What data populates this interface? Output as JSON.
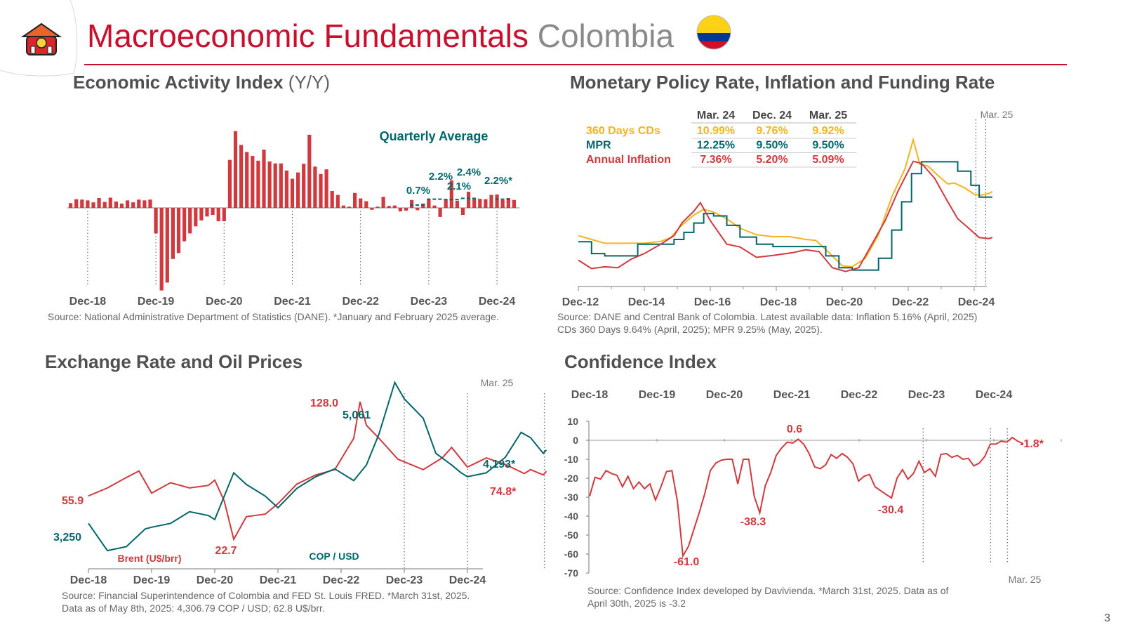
{
  "header": {
    "title_main": "Macroeconomic Fundamentals",
    "title_country": "Colombia",
    "page_number": "3"
  },
  "colors": {
    "red": "#c8102e",
    "chart_red": "#d0393e",
    "teal": "#00666a",
    "gold": "#f0b51e",
    "flag_yellow": "#fcd116",
    "flag_blue": "#003893",
    "flag_red": "#ce1126"
  },
  "panels": {
    "activity": {
      "title": "Economic Activity Index",
      "title_suffix": "(Y/Y)",
      "source": "Source: National Administrative Department of Statistics (DANE). *January and February 2025 average."
    },
    "rates": {
      "title": "Monetary Policy Rate, Inflation and Funding Rate",
      "source_line1": "Source: DANE and Central Bank of Colombia. Latest available data: Inflation 5.16% (April, 2025)",
      "source_line2": "CDs 360 Days 9.64% (April, 2025); MPR 9.25% (May, 2025)."
    },
    "fx": {
      "title": "Exchange Rate and Oil Prices",
      "source_line1": "Source: Financial Superintendence of Colombia and FED St. Louis FRED. *March 31st, 2025.",
      "source_line2": "Data as of May 8th, 2025: 4,306.79 COP / USD; 62.8 U$/brr."
    },
    "confidence": {
      "title": "Confidence Index",
      "source_line1": "Source: Confidence Index developed by Davivienda. *March 31st, 2025. Data as of",
      "source_line2": "April 30th, 2025 is -3.2"
    }
  },
  "chart_data": [
    {
      "id": "activity",
      "type": "bar",
      "title": "Economic Activity Index (Y/Y)",
      "x_ticks": [
        "Dec-18",
        "Dec-19",
        "Dec-20",
        "Dec-21",
        "Dec-22",
        "Dec-23",
        "Dec-24"
      ],
      "start": "Sep-18",
      "values": [
        1.2,
        2.2,
        2.1,
        1.9,
        1.4,
        2.5,
        1.5,
        2.6,
        1.6,
        1.1,
        1.9,
        1.4,
        2.1,
        1.9,
        2.1,
        -6.5,
        -21.0,
        -19.0,
        -13.0,
        -11.5,
        -8.5,
        -6.5,
        -4.7,
        -3.2,
        -2.2,
        -1.8,
        -3.4,
        -3.4,
        12.2,
        19.5,
        16.0,
        14.2,
        13.2,
        12.0,
        14.8,
        11.8,
        11.3,
        11.3,
        9.5,
        7.4,
        9.0,
        11.2,
        18.6,
        10.5,
        8.6,
        9.8,
        4.3,
        3.3,
        0.6,
        0.3,
        3.8,
        2.4,
        1.7,
        -0.5,
        0.3,
        2.8,
        0.5,
        0.6,
        -0.9,
        -0.7,
        2.0,
        -0.6,
        1.1,
        2.1,
        0.6,
        -2.3,
        2.0,
        7.0,
        1.8,
        -1.8,
        4.1,
        2.4,
        2.3,
        2.2,
        3.3,
        3.4,
        2.0,
        2.5,
        2.0
      ],
      "quarterly_avg_label": "Quarterly Average",
      "quarterly_avg": [
        {
          "label": "0.7%",
          "value": 0.7
        },
        {
          "label": "2.2%",
          "value": 2.2
        },
        {
          "label": "2.1%",
          "value": 2.1
        },
        {
          "label": "2.4%",
          "value": 2.4
        },
        {
          "label": "2.2%*",
          "value": 2.2
        }
      ]
    },
    {
      "id": "rates",
      "type": "line",
      "x_ticks": [
        "Dec-12",
        "Dec-14",
        "Dec-16",
        "Dec-18",
        "Dec-20",
        "Dec-22",
        "Dec-24"
      ],
      "marker_label": "Mar. 25",
      "table": {
        "columns": [
          "Mar. 24",
          "Dec. 24",
          "Mar. 25"
        ],
        "rows": [
          {
            "name": "360 Days CDs",
            "color": "#f0b51e",
            "values": [
              "10.99%",
              "9.76%",
              "9.92%"
            ]
          },
          {
            "name": "MPR",
            "color": "#00666a",
            "values": [
              "12.25%",
              "9.50%",
              "9.50%"
            ]
          },
          {
            "name": "Annual Inflation",
            "color": "#d0393e",
            "values": [
              "7.36%",
              "5.20%",
              "5.09%"
            ]
          }
        ]
      },
      "series": [
        {
          "name": "360 Days CDs",
          "color": "#f0b51e",
          "points": [
            [
              2012.8,
              5.4
            ],
            [
              2013.2,
              5.0
            ],
            [
              2013.6,
              4.6
            ],
            [
              2014.2,
              4.6
            ],
            [
              2014.8,
              4.6
            ],
            [
              2015.3,
              4.8
            ],
            [
              2015.6,
              5.2
            ],
            [
              2015.9,
              6.4
            ],
            [
              2016.3,
              7.6
            ],
            [
              2016.6,
              8.2
            ],
            [
              2016.9,
              7.9
            ],
            [
              2017.3,
              7.2
            ],
            [
              2017.7,
              6.2
            ],
            [
              2018.2,
              5.5
            ],
            [
              2018.7,
              5.3
            ],
            [
              2019.2,
              5.3
            ],
            [
              2019.7,
              5.0
            ],
            [
              2020.0,
              4.9
            ],
            [
              2020.4,
              3.6
            ],
            [
              2020.8,
              2.2
            ],
            [
              2021.1,
              2.1
            ],
            [
              2021.5,
              3.0
            ],
            [
              2021.9,
              5.5
            ],
            [
              2022.3,
              9.5
            ],
            [
              2022.7,
              12.5
            ],
            [
              2022.95,
              15.6
            ],
            [
              2023.15,
              13.0
            ],
            [
              2023.4,
              12.8
            ],
            [
              2023.7,
              11.8
            ],
            [
              2024.0,
              10.9
            ],
            [
              2024.2,
              11.0
            ],
            [
              2024.5,
              10.5
            ],
            [
              2024.8,
              9.8
            ],
            [
              2025.0,
              9.7
            ],
            [
              2025.25,
              9.9
            ],
            [
              2025.35,
              10.1
            ]
          ]
        },
        {
          "name": "MPR",
          "color": "#00666a",
          "points": [
            [
              2012.8,
              4.75
            ],
            [
              2013.2,
              3.5
            ],
            [
              2013.6,
              3.25
            ],
            [
              2014.2,
              3.25
            ],
            [
              2014.6,
              4.5
            ],
            [
              2015.0,
              4.5
            ],
            [
              2015.7,
              5.0
            ],
            [
              2016.0,
              5.75
            ],
            [
              2016.3,
              6.75
            ],
            [
              2016.6,
              7.75
            ],
            [
              2016.9,
              7.5
            ],
            [
              2017.3,
              6.5
            ],
            [
              2017.7,
              5.25
            ],
            [
              2018.2,
              4.5
            ],
            [
              2018.7,
              4.25
            ],
            [
              2019.6,
              4.25
            ],
            [
              2020.0,
              4.25
            ],
            [
              2020.3,
              3.25
            ],
            [
              2020.7,
              2.0
            ],
            [
              2021.1,
              1.75
            ],
            [
              2021.6,
              1.75
            ],
            [
              2021.9,
              3.0
            ],
            [
              2022.3,
              6.0
            ],
            [
              2022.6,
              9.0
            ],
            [
              2022.9,
              12.0
            ],
            [
              2023.2,
              13.25
            ],
            [
              2023.9,
              13.25
            ],
            [
              2024.3,
              12.25
            ],
            [
              2024.7,
              10.75
            ],
            [
              2024.95,
              9.5
            ],
            [
              2025.35,
              9.5
            ]
          ]
        },
        {
          "name": "Annual Inflation",
          "color": "#d0393e",
          "points": [
            [
              2012.8,
              2.8
            ],
            [
              2013.2,
              1.9
            ],
            [
              2013.6,
              2.1
            ],
            [
              2014.0,
              2.0
            ],
            [
              2014.4,
              2.9
            ],
            [
              2014.8,
              3.5
            ],
            [
              2015.3,
              4.5
            ],
            [
              2015.7,
              5.4
            ],
            [
              2015.95,
              6.8
            ],
            [
              2016.3,
              8.0
            ],
            [
              2016.5,
              8.9
            ],
            [
              2016.8,
              7.0
            ],
            [
              2017.3,
              4.5
            ],
            [
              2017.7,
              4.2
            ],
            [
              2018.2,
              3.1
            ],
            [
              2018.7,
              3.3
            ],
            [
              2019.3,
              3.6
            ],
            [
              2019.7,
              3.9
            ],
            [
              2020.1,
              3.7
            ],
            [
              2020.5,
              2.0
            ],
            [
              2020.9,
              1.6
            ],
            [
              2021.3,
              2.0
            ],
            [
              2021.7,
              4.5
            ],
            [
              2022.1,
              7.0
            ],
            [
              2022.5,
              10.2
            ],
            [
              2022.95,
              13.3
            ],
            [
              2023.2,
              13.1
            ],
            [
              2023.6,
              11.5
            ],
            [
              2023.95,
              9.3
            ],
            [
              2024.3,
              7.2
            ],
            [
              2024.6,
              6.3
            ],
            [
              2024.95,
              5.2
            ],
            [
              2025.25,
              5.1
            ],
            [
              2025.35,
              5.2
            ]
          ]
        }
      ]
    },
    {
      "id": "fx",
      "type": "line",
      "x_ticks": [
        "Dec-18",
        "Dec-19",
        "Dec-20",
        "Dec-21",
        "Dec-22",
        "Dec-23",
        "Dec-24"
      ],
      "marker_label": "Mar. 25",
      "series": [
        {
          "name": "Brent (U$/brr)",
          "axis": "right",
          "color": "#d0393e",
          "start_label": "55.9",
          "end_label": "74.8*",
          "points": [
            [
              2018.0,
              55.9
            ],
            [
              2018.3,
              62
            ],
            [
              2018.6,
              70
            ],
            [
              2018.8,
              75
            ],
            [
              2019.0,
              58
            ],
            [
              2019.3,
              66
            ],
            [
              2019.6,
              62
            ],
            [
              2019.9,
              64
            ],
            [
              2020.0,
              68
            ],
            [
              2020.15,
              52
            ],
            [
              2020.3,
              22.7
            ],
            [
              2020.5,
              40
            ],
            [
              2020.8,
              42
            ],
            [
              2021.0,
              50
            ],
            [
              2021.3,
              65
            ],
            [
              2021.6,
              72
            ],
            [
              2021.9,
              76
            ],
            [
              2022.2,
              100
            ],
            [
              2022.3,
              128.0
            ],
            [
              2022.4,
              110
            ],
            [
              2022.6,
              100
            ],
            [
              2022.9,
              84
            ],
            [
              2023.0,
              82
            ],
            [
              2023.3,
              76
            ],
            [
              2023.6,
              85
            ],
            [
              2023.75,
              93
            ],
            [
              2024.0,
              78
            ],
            [
              2024.3,
              85
            ],
            [
              2024.6,
              80
            ],
            [
              2024.9,
              73
            ],
            [
              2025.0,
              76
            ],
            [
              2025.2,
              72
            ],
            [
              2025.25,
              74.8
            ]
          ]
        },
        {
          "name": "COP / USD",
          "axis": "left",
          "color": "#00666a",
          "start_label": "3,250",
          "end_label": "4,193*",
          "points": [
            [
              2018.0,
              3250
            ],
            [
              2018.3,
              2900
            ],
            [
              2018.6,
              2950
            ],
            [
              2018.9,
              3180
            ],
            [
              2019.0,
              3200
            ],
            [
              2019.3,
              3250
            ],
            [
              2019.6,
              3400
            ],
            [
              2019.9,
              3350
            ],
            [
              2020.0,
              3300
            ],
            [
              2020.3,
              3900
            ],
            [
              2020.5,
              3750
            ],
            [
              2020.8,
              3600
            ],
            [
              2021.0,
              3450
            ],
            [
              2021.3,
              3700
            ],
            [
              2021.6,
              3850
            ],
            [
              2021.9,
              3950
            ],
            [
              2022.2,
              3800
            ],
            [
              2022.4,
              4000
            ],
            [
              2022.6,
              4400
            ],
            [
              2022.85,
              5061
            ],
            [
              2023.0,
              4850
            ],
            [
              2023.3,
              4600
            ],
            [
              2023.5,
              4150
            ],
            [
              2023.75,
              4000
            ],
            [
              2023.9,
              3900
            ],
            [
              2024.0,
              3850
            ],
            [
              2024.3,
              3900
            ],
            [
              2024.6,
              4100
            ],
            [
              2024.85,
              4420
            ],
            [
              2025.0,
              4350
            ],
            [
              2025.2,
              4150
            ],
            [
              2025.25,
              4193
            ]
          ]
        }
      ]
    },
    {
      "id": "confidence",
      "type": "line",
      "x_ticks": [
        "Dec-18",
        "Dec-19",
        "Dec-20",
        "Dec-21",
        "Dec-22",
        "Dec-23",
        "Dec-24"
      ],
      "y_ticks": [
        10,
        0,
        -10,
        -20,
        -30,
        -40,
        -50,
        -60,
        -70
      ],
      "ylim": [
        -70,
        10
      ],
      "marker_label": "Mar. 25",
      "values": [
        -29.5,
        -19.5,
        -20.5,
        -16,
        -17.5,
        -18.5,
        -24.5,
        -19,
        -25.5,
        -22,
        -25.5,
        -23,
        -31.5,
        -24.5,
        -16.5,
        -16,
        -32,
        -61,
        -56,
        -47,
        -38,
        -28,
        -16,
        -12,
        -10.5,
        -10,
        -10,
        -23,
        -10,
        -10,
        -29.5,
        -38.3,
        -24,
        -17,
        -8,
        -4,
        -1,
        -1.5,
        0.6,
        -2,
        -7,
        -14,
        -15,
        -13,
        -7.5,
        -9.5,
        -7,
        -9,
        -12.5,
        -21.5,
        -19,
        -18,
        -24.5,
        -26.5,
        -28.5,
        -30.4,
        -20,
        -15.5,
        -20.5,
        -17.5,
        -11,
        -17,
        -15,
        -19,
        -7.5,
        -7,
        -9,
        -8,
        -10,
        -9.5,
        -13.5,
        -12,
        -8.5,
        -2,
        -2,
        -0.5,
        -1,
        1.5,
        -0.5,
        -1.8
      ],
      "annotations": [
        {
          "label": "0.6",
          "value": 0.6
        },
        {
          "label": "-61.0",
          "value": -61.0
        },
        {
          "label": "-38.3",
          "value": -38.3
        },
        {
          "label": "-30.4",
          "value": -30.4
        },
        {
          "label": "-1.8*",
          "value": -1.8
        }
      ]
    }
  ],
  "fx_labels": {
    "peak_brent": "128.0",
    "peak_cop": "5,061",
    "low_brent": "22.7",
    "brent_name": "Brent (U$/brr)",
    "cop_name": "COP / USD"
  }
}
